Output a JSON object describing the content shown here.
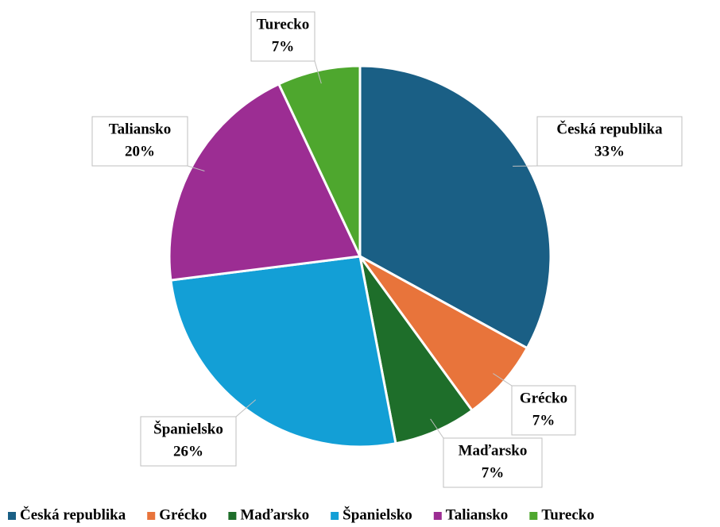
{
  "chart_data": {
    "type": "pie",
    "categories": [
      "Česká republika",
      "Grécko",
      "Maďarsko",
      "Španielsko",
      "Taliansko",
      "Turecko"
    ],
    "values": [
      33,
      7,
      7,
      26,
      20,
      7
    ],
    "value_labels": [
      "33%",
      "7%",
      "7%",
      "26%",
      "20%",
      "7%"
    ],
    "colors": [
      "#1a5f85",
      "#e8743b",
      "#1e6e2a",
      "#139fd6",
      "#9c2d93",
      "#4ea72e"
    ],
    "legend": "bottom"
  }
}
